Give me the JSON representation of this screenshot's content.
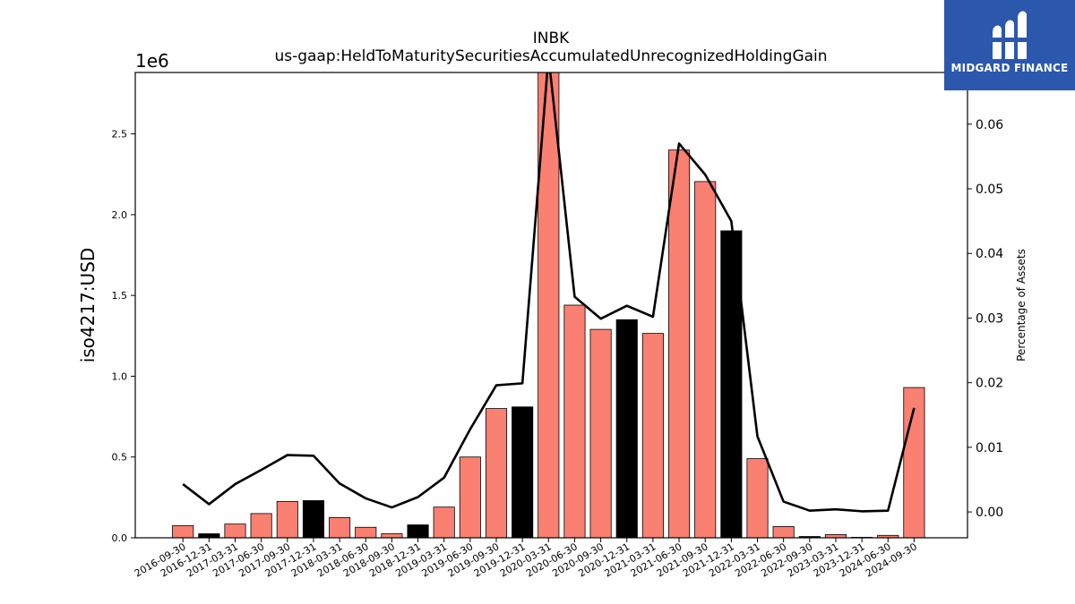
{
  "chart_data": {
    "type": "bar",
    "title": "INBK",
    "subtitle": "us-gaap:HeldToMaturitySecuritiesAccumulatedUnrecognizedHoldingGain",
    "ylabel": "iso4217:USD",
    "ylabel_right": "Percentage of Assets",
    "y_offset_label": "1e6",
    "ylim": [
      0,
      2880000
    ],
    "ylim_right": [
      -0.004,
      0.068
    ],
    "y_ticks": [
      "0.0",
      "0.5",
      "1.0",
      "1.5",
      "2.0",
      "2.5"
    ],
    "y_ticks_right": [
      "0.00",
      "0.01",
      "0.02",
      "0.03",
      "0.04",
      "0.05",
      "0.06"
    ],
    "grid": false,
    "categories": [
      "2016-09-30",
      "2016-12-31",
      "2017-03-31",
      "2017-06-30",
      "2017-09-30",
      "2017-12-31",
      "2018-03-31",
      "2018-06-30",
      "2018-09-30",
      "2018-12-31",
      "2019-03-31",
      "2019-06-30",
      "2019-09-30",
      "2019-12-31",
      "2020-03-31",
      "2020-06-30",
      "2020-09-30",
      "2020-12-31",
      "2021-03-31",
      "2021-06-30",
      "2021-09-30",
      "2021-12-31",
      "2022-03-31",
      "2022-06-30",
      "2022-09-30",
      "2023-03-31",
      "2023-12-31",
      "2024-06-30",
      "2024-09-30"
    ],
    "series": [
      {
        "type": "bar",
        "values": [
          75000,
          25000,
          85000,
          150000,
          225000,
          230000,
          125000,
          65000,
          25000,
          80000,
          190000,
          500000,
          800000,
          810000,
          2900000,
          1440000,
          1290000,
          1350000,
          1265000,
          2400000,
          2205000,
          1900000,
          490000,
          70000,
          8000,
          20000,
          3000,
          15000,
          930000
        ],
        "colors": [
          "#fa8072",
          "#000000",
          "#fa8072",
          "#fa8072",
          "#fa8072",
          "#000000",
          "#fa8072",
          "#fa8072",
          "#fa8072",
          "#000000",
          "#fa8072",
          "#fa8072",
          "#fa8072",
          "#000000",
          "#fa8072",
          "#fa8072",
          "#fa8072",
          "#000000",
          "#fa8072",
          "#fa8072",
          "#fa8072",
          "#000000",
          "#fa8072",
          "#fa8072",
          "#000000",
          "#fa8072",
          "#000000",
          "#fa8072",
          "#fa8072"
        ]
      },
      {
        "type": "line",
        "axis": "right",
        "color": "#000000",
        "values": [
          0.0043,
          0.0012,
          0.0043,
          0.0065,
          0.0088,
          0.0087,
          0.0044,
          0.0021,
          0.0007,
          0.0023,
          0.0053,
          0.0128,
          0.0196,
          0.0199,
          0.0705,
          0.0333,
          0.0299,
          0.0319,
          0.0302,
          0.057,
          0.0522,
          0.045,
          0.0117,
          0.0016,
          0.0002,
          0.0004,
          0.0001,
          0.0002,
          0.0161
        ]
      }
    ]
  },
  "logo": {
    "text": "MIDGARD FINANCE",
    "bg_color": "#2b58ad"
  }
}
